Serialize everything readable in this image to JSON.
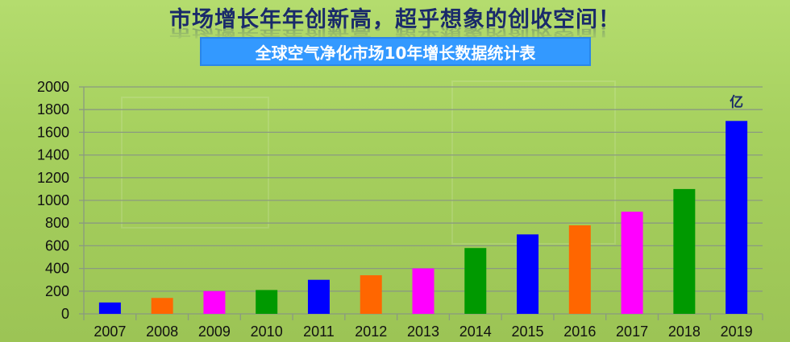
{
  "header": {
    "title": "市场增长年年创新高，超乎想象的创收空间！",
    "subtitle": "全球空气净化市场10年增长数据统计表"
  },
  "chart_data": {
    "type": "bar",
    "title": "全球空气净化市场10年增长数据统计表",
    "categories": [
      "2007",
      "2008",
      "2009",
      "2010",
      "2011",
      "2012",
      "2013",
      "2014",
      "2015",
      "2016",
      "2017",
      "2018",
      "2019"
    ],
    "values": [
      100,
      140,
      200,
      210,
      300,
      340,
      400,
      580,
      700,
      780,
      900,
      1100,
      1700
    ],
    "colors": [
      "#0000ff",
      "#ff6600",
      "#ff00ff",
      "#009900",
      "#0000ff",
      "#ff6600",
      "#ff00ff",
      "#009900",
      "#0000ff",
      "#ff6600",
      "#ff00ff",
      "#009900",
      "#0000ff"
    ],
    "unit_label": "亿",
    "ylim": [
      0,
      2000
    ],
    "yticks": [
      0,
      200,
      400,
      600,
      800,
      1000,
      1200,
      1400,
      1600,
      1800,
      2000
    ],
    "grid": true,
    "xlabel": "",
    "ylabel": ""
  }
}
